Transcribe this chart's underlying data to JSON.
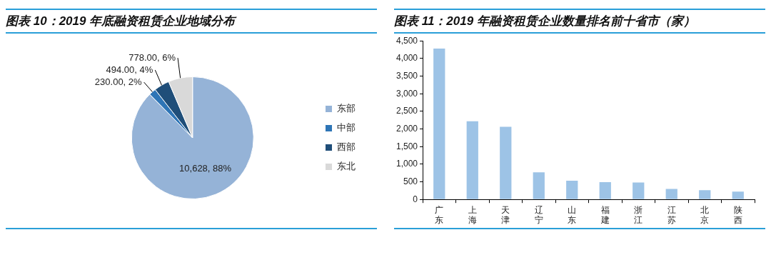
{
  "chart_data": [
    {
      "type": "pie",
      "title": "图表 10：2019 年底融资租赁企业地域分布",
      "categories": [
        "东部",
        "中部",
        "西部",
        "东北"
      ],
      "values": [
        10628,
        230,
        494,
        778
      ],
      "colors": [
        "#95b3d7",
        "#2e75b6",
        "#1f4e79",
        "#d9d9d9"
      ],
      "value_labels": [
        "10,628, 88%",
        "230.00, 2%",
        "494.00, 4%",
        "778.00, 6%"
      ],
      "legend": "right"
    },
    {
      "type": "bar",
      "title": "图表 11：2019 年融资租赁企业数量排名前十省市（家）",
      "categories": [
        "广东",
        "上海",
        "天津",
        "辽宁",
        "山东",
        "福建",
        "浙江",
        "江苏",
        "北京",
        "陕西"
      ],
      "values": [
        4280,
        2220,
        2060,
        770,
        530,
        490,
        480,
        300,
        260,
        220
      ],
      "color": "#9dc3e6",
      "ylim": [
        0,
        4500
      ],
      "yticks": [
        0,
        500,
        {
          "value": 1000,
          "label": "1,000"
        },
        {
          "value": 1500,
          "label": "1,500"
        },
        {
          "value": 2000,
          "label": "2,000"
        },
        {
          "value": 2500,
          "label": "2,500"
        },
        {
          "value": 3000,
          "label": "3,000"
        },
        {
          "value": 3500,
          "label": "3,500"
        },
        {
          "value": 4000,
          "label": "4,000"
        },
        {
          "value": 4500,
          "label": "4,500"
        }
      ],
      "grid": false
    }
  ]
}
